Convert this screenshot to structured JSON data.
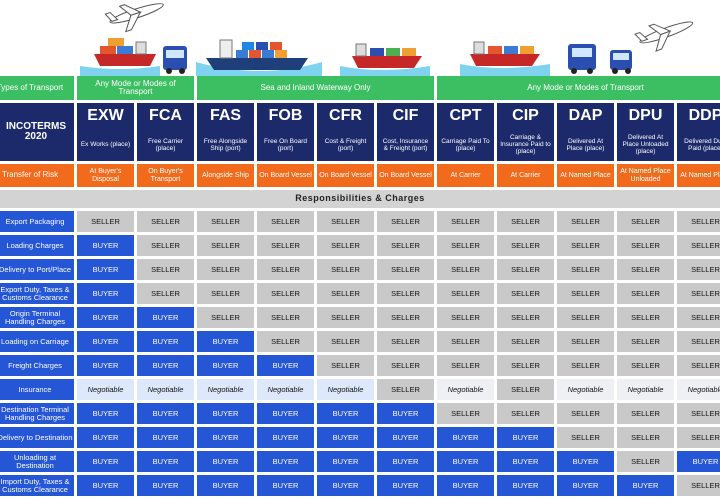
{
  "transport": {
    "label": "Types of Transport",
    "groups": [
      "Any Mode or Modes of Transport",
      "Sea and Inland Waterway Only",
      "Any Mode or Modes of Transport"
    ]
  },
  "incoterms_label": "INCOTERMS 2020",
  "risk_label": "Transfer of Risk",
  "section_title": "Responsibilities & Charges",
  "terms": [
    {
      "code": "EXW",
      "description": "Ex Works (place)",
      "risk": "At Buyer's Disposal"
    },
    {
      "code": "FCA",
      "description": "Free Carrier (place)",
      "risk": "On Buyer's Transport"
    },
    {
      "code": "FAS",
      "description": "Free Alongside Ship (port)",
      "risk": "Alongside Ship"
    },
    {
      "code": "FOB",
      "description": "Free On Board (port)",
      "risk": "On Board Vessel"
    },
    {
      "code": "CFR",
      "description": "Cost & Freight (port)",
      "risk": "On Board Vessel"
    },
    {
      "code": "CIF",
      "description": "Cost, Insurance & Freight (port)",
      "risk": "On Board Vessel"
    },
    {
      "code": "CPT",
      "description": "Carriage Paid To (place)",
      "risk": "At Carrier"
    },
    {
      "code": "CIP",
      "description": "Carriage & Insurance Paid to (place)",
      "risk": "At Carrier"
    },
    {
      "code": "DAP",
      "description": "Delivered At Place (place)",
      "risk": "At Named Place"
    },
    {
      "code": "DPU",
      "description": "Delivered At Place Unloaded (place)",
      "risk": "At Named Place Unloaded"
    },
    {
      "code": "DDP",
      "description": "Delivered Duty Paid (place)",
      "risk": "At Named Place"
    }
  ],
  "rows": [
    {
      "label": "Export Packaging",
      "cells": [
        "SELLER",
        "SELLER",
        "SELLER",
        "SELLER",
        "SELLER",
        "SELLER",
        "SELLER",
        "SELLER",
        "SELLER",
        "SELLER",
        "SELLER"
      ]
    },
    {
      "label": "Loading Charges",
      "cells": [
        "BUYER",
        "SELLER",
        "SELLER",
        "SELLER",
        "SELLER",
        "SELLER",
        "SELLER",
        "SELLER",
        "SELLER",
        "SELLER",
        "SELLER"
      ]
    },
    {
      "label": "Delivery to Port/Place",
      "cells": [
        "BUYER",
        "SELLER",
        "SELLER",
        "SELLER",
        "SELLER",
        "SELLER",
        "SELLER",
        "SELLER",
        "SELLER",
        "SELLER",
        "SELLER"
      ]
    },
    {
      "label": "Export Duty, Taxes & Customs Clearance",
      "cells": [
        "BUYER",
        "SELLER",
        "SELLER",
        "SELLER",
        "SELLER",
        "SELLER",
        "SELLER",
        "SELLER",
        "SELLER",
        "SELLER",
        "SELLER"
      ]
    },
    {
      "label": "Origin Terminal Handling Charges",
      "cells": [
        "BUYER",
        "BUYER",
        "SELLER",
        "SELLER",
        "SELLER",
        "SELLER",
        "SELLER",
        "SELLER",
        "SELLER",
        "SELLER",
        "SELLER"
      ]
    },
    {
      "label": "Loading on Carriage",
      "cells": [
        "BUYER",
        "BUYER",
        "BUYER",
        "SELLER",
        "SELLER",
        "SELLER",
        "SELLER",
        "SELLER",
        "SELLER",
        "SELLER",
        "SELLER"
      ]
    },
    {
      "label": "Freight Charges",
      "cells": [
        "BUYER",
        "BUYER",
        "BUYER",
        "BUYER",
        "SELLER",
        "SELLER",
        "SELLER",
        "SELLER",
        "SELLER",
        "SELLER",
        "SELLER"
      ]
    },
    {
      "label": "Insurance",
      "cells": [
        "Negotiable",
        "Negotiable",
        "Negotiable",
        "Negotiable",
        "Negotiable",
        "SELLER",
        "Negotiable",
        "SELLER",
        "Negotiable",
        "Negotiable",
        "Negotiable"
      ]
    },
    {
      "label": "Destination Terminal Handling Charges",
      "cells": [
        "BUYER",
        "BUYER",
        "BUYER",
        "BUYER",
        "BUYER",
        "BUYER",
        "SELLER",
        "SELLER",
        "SELLER",
        "SELLER",
        "SELLER"
      ]
    },
    {
      "label": "Delivery to Destination",
      "cells": [
        "BUYER",
        "BUYER",
        "BUYER",
        "BUYER",
        "BUYER",
        "BUYER",
        "BUYER",
        "BUYER",
        "SELLER",
        "SELLER",
        "SELLER"
      ]
    },
    {
      "label": "Unloading at Destination",
      "cells": [
        "BUYER",
        "BUYER",
        "BUYER",
        "BUYER",
        "BUYER",
        "BUYER",
        "BUYER",
        "BUYER",
        "BUYER",
        "SELLER",
        "BUYER"
      ]
    },
    {
      "label": "Import Duty, Taxes & Customs Clearance",
      "cells": [
        "BUYER",
        "BUYER",
        "BUYER",
        "BUYER",
        "BUYER",
        "BUYER",
        "BUYER",
        "BUYER",
        "BUYER",
        "BUYER",
        "SELLER"
      ]
    }
  ]
}
